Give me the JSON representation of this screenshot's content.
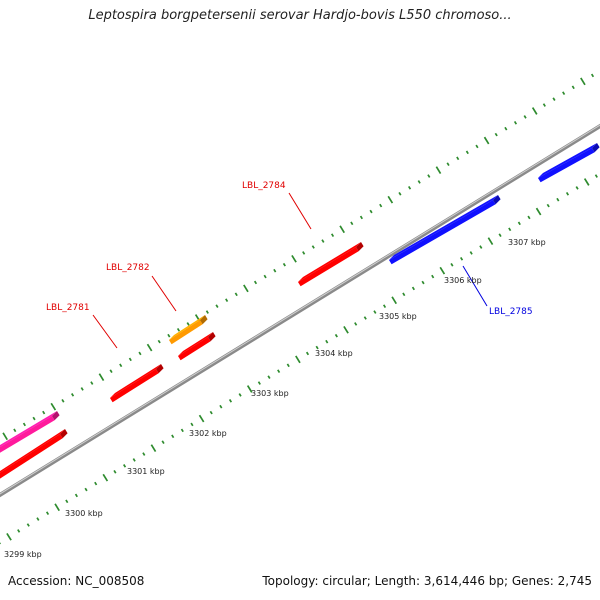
{
  "title": "Leptospira borgpetersenii serovar Hardjo-bovis L550 chromoso...",
  "footer": {
    "accession": "Accession: NC_008508",
    "summary": "Topology: circular; Length: 3,614,446 bp; Genes: 2,745"
  },
  "colors": {
    "backbone": "#8a8a8a",
    "tick": "#2e8b2e",
    "red": "#ff0000",
    "orange": "#ff9a00",
    "magenta": "#ff1a9c",
    "blue": "#1010ff",
    "label_red": "#e00000",
    "label_blue": "#0000e0"
  },
  "ticks": [
    "3299 kbp",
    "3300 kbp",
    "3301 kbp",
    "3302 kbp",
    "3303 kbp",
    "3304 kbp",
    "3305 kbp",
    "3306 kbp",
    "3307 kbp"
  ],
  "gene_labels": [
    {
      "text": "LBL_2781",
      "color": "label_red"
    },
    {
      "text": "LBL_2782",
      "color": "label_red"
    },
    {
      "text": "LBL_2784",
      "color": "label_red"
    },
    {
      "text": "LBL_2785",
      "color": "label_blue"
    }
  ]
}
